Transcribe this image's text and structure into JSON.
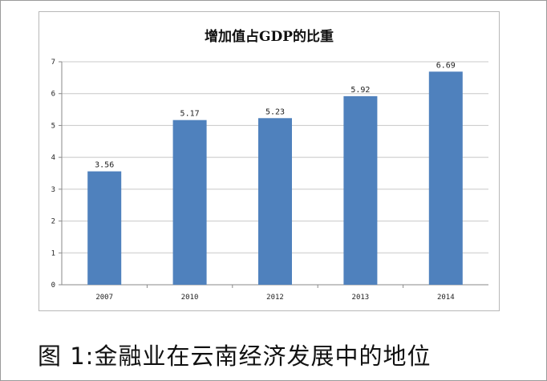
{
  "chart_data": {
    "type": "bar",
    "title": "增加值占GDP的比重",
    "categories": [
      "2007",
      "2010",
      "2012",
      "2013",
      "2014"
    ],
    "values": [
      3.56,
      5.17,
      5.23,
      5.92,
      6.69
    ],
    "value_labels": [
      "3.56",
      "5.17",
      "5.23",
      "5.92",
      "6.69"
    ],
    "xlabel": "",
    "ylabel": "",
    "ylim": [
      0,
      7
    ],
    "yticks": [
      "0",
      "1",
      "2",
      "3",
      "4",
      "5",
      "6",
      "7"
    ],
    "grid": true,
    "legend": "none",
    "bar_color": "#4f81bd"
  },
  "caption": "图 1:金融业在云南经济发展中的地位"
}
